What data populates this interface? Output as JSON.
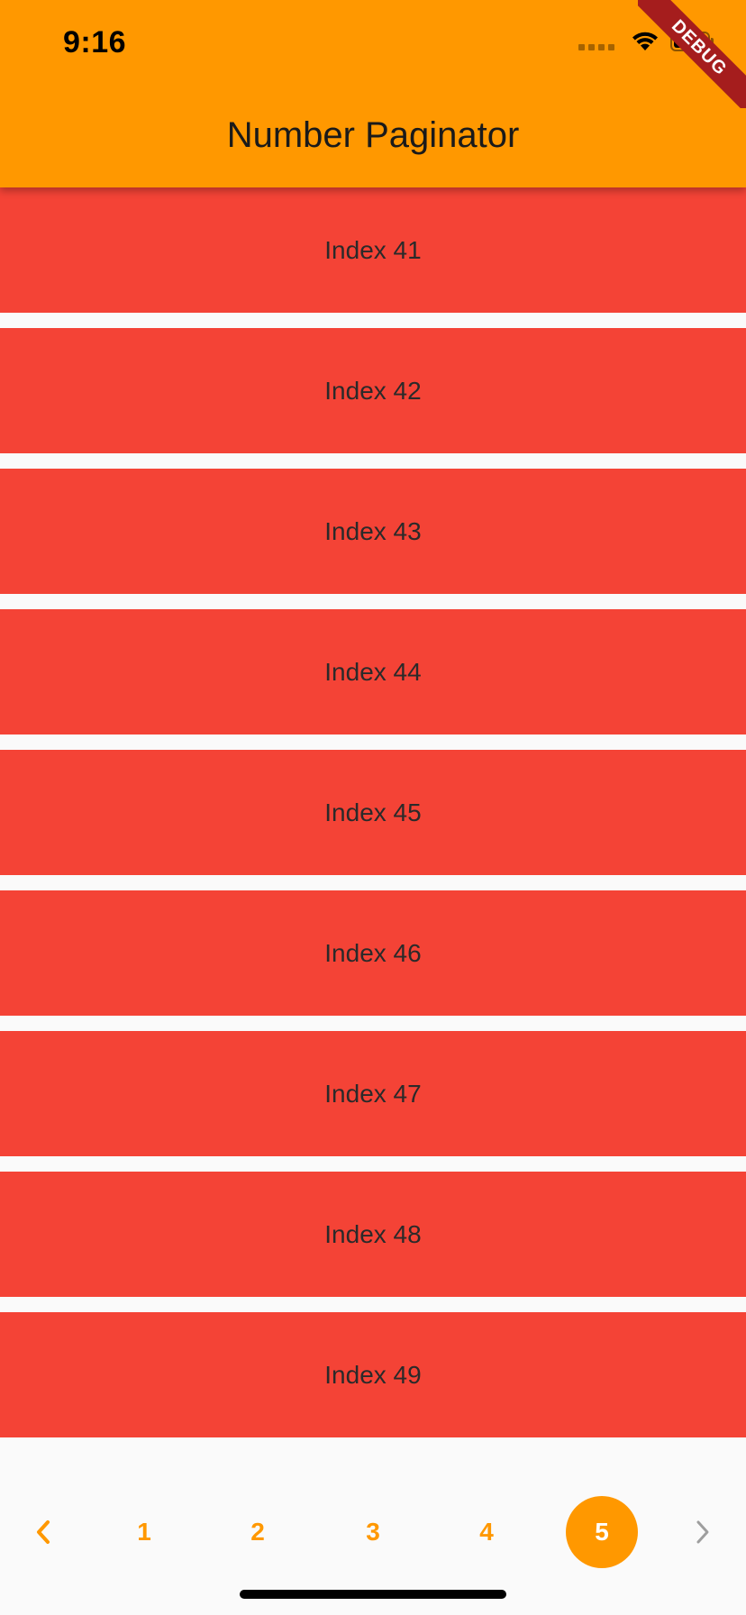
{
  "status_bar": {
    "time": "9:16",
    "icons": [
      "signal-icon",
      "wifi-icon",
      "battery-icon"
    ]
  },
  "app_bar": {
    "title": "Number Paginator",
    "color": "#ff9800"
  },
  "debug_banner": {
    "label": "DEBUG"
  },
  "list": {
    "item_color": "#f44336",
    "items": [
      {
        "label": "Index 41"
      },
      {
        "label": "Index 42"
      },
      {
        "label": "Index 43"
      },
      {
        "label": "Index 44"
      },
      {
        "label": "Index 45"
      },
      {
        "label": "Index 46"
      },
      {
        "label": "Index 47"
      },
      {
        "label": "Index 48"
      },
      {
        "label": "Index 49"
      }
    ]
  },
  "paginator": {
    "prev_icon": "chevron-left-icon",
    "next_icon": "chevron-right-icon",
    "pages": [
      "1",
      "2",
      "3",
      "4",
      "5"
    ],
    "current_page": "5",
    "accent_color": "#ff9800"
  }
}
